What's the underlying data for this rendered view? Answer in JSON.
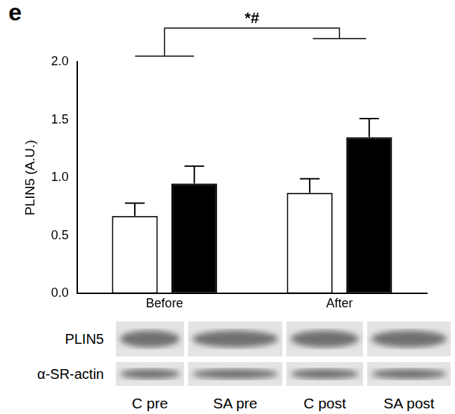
{
  "chart_data": {
    "type": "bar",
    "panel_label": "e",
    "y_label": "PLIN5 (A.U.)",
    "categories": [
      "Before",
      "After"
    ],
    "series": [
      {
        "color": "#ffffff",
        "values": [
          0.67,
          0.87
        ],
        "errors": [
          0.11,
          0.12
        ]
      },
      {
        "color": "#000000",
        "values": [
          0.95,
          1.35
        ],
        "errors": [
          0.15,
          0.16
        ]
      }
    ],
    "ylim": [
      0,
      2
    ],
    "yticks": [
      {
        "value": 0,
        "label": "0.0"
      },
      0.5,
      {
        "value": 1,
        "label": "1.0"
      },
      1.5,
      {
        "value": 2,
        "label": "2.0"
      }
    ],
    "grid": false,
    "annotations": [
      {
        "text": "*#",
        "from": "Before",
        "to": "After"
      }
    ]
  },
  "blot": {
    "rows": [
      "PLIN5",
      "α-SR-actin"
    ],
    "lanes": [
      "C pre",
      "SA pre",
      "C post",
      "SA post"
    ]
  }
}
